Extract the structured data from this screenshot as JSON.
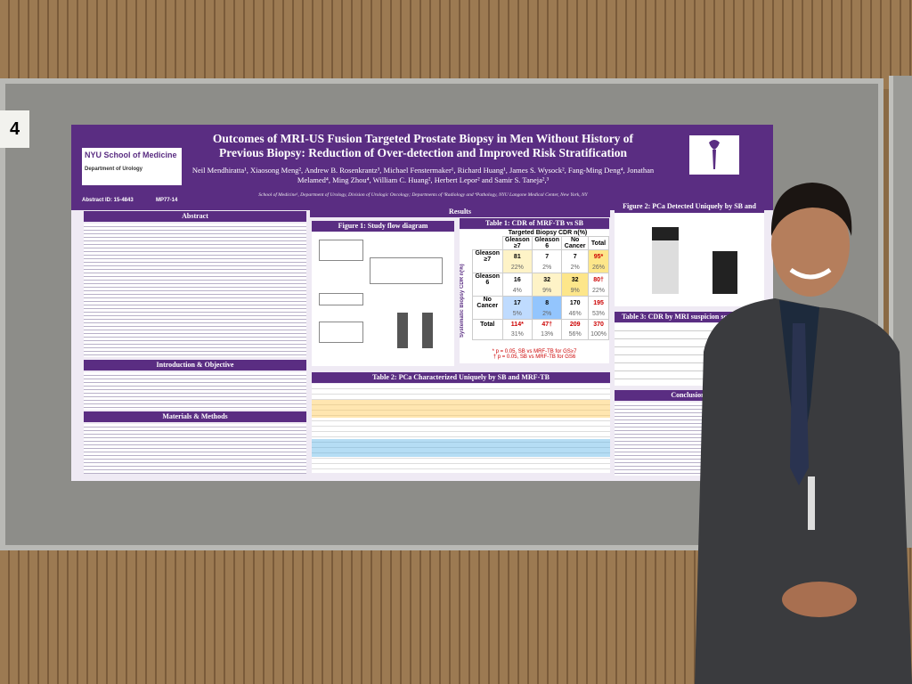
{
  "board_number": "4",
  "poster": {
    "title": "Outcomes of MRI-US Fusion Targeted Prostate Biopsy in Men Without History of Previous Biopsy: Reduction of Over-detection and Improved Risk Stratification",
    "logo": {
      "school": "NYU School of Medicine",
      "department": "Department of Urology"
    },
    "abstract_id": "Abstract ID: 15-4843",
    "poster_id": "MP77-14",
    "authors": "Neil Mendhiratta¹, Xiaosong Meng², Andrew B. Rosenkrantz³, Michael Fenstermaker¹, Richard Huang¹, James S. Wysock², Fang-Ming Deng⁴, Jonathan Melamed⁴, Ming Zhou⁴, William C. Huang², Herbert Lepor² and Samir S. Taneja²,³",
    "affiliations": "School of Medicine¹, Department of Urology, Division of Urologic Oncology; Departments of ³Radiology and ⁴Pathology, NYU Langone Medical Center, New York, NY",
    "sections": {
      "abstract": "Abstract",
      "results": "Results",
      "intro": "Introduction & Objective",
      "methods": "Materials & Methods",
      "conclusions": "Conclusions"
    },
    "figure1": "Figure 1: Study flow diagram",
    "figure2": "Figure 2: PCa Detected Uniquely by SB and MRF-TB",
    "table2": "Table 2: PCa Characterized Uniquely by SB and MRF-TB",
    "table3": "Table 3: CDR by MRI suspicion score (mSS)",
    "table1": {
      "title": "Table 1: CDR of MRF-TB vs SB",
      "col_axis": "Targeted Biopsy CDR n(%)",
      "row_axis": "Systematic Biopsy CDR n(%)",
      "columns": [
        "Gleason ≥7",
        "Gleason 6",
        "No Cancer",
        "Total"
      ],
      "rows": [
        {
          "label": "Gleason ≥7",
          "counts": [
            "81",
            "7",
            "7",
            "95*"
          ],
          "pcts": [
            "22%",
            "2%",
            "2%",
            "26%"
          ]
        },
        {
          "label": "Gleason 6",
          "counts": [
            "16",
            "32",
            "32",
            "80†"
          ],
          "pcts": [
            "4%",
            "9%",
            "9%",
            "22%"
          ]
        },
        {
          "label": "No Cancer",
          "counts": [
            "17",
            "8",
            "170",
            "195"
          ],
          "pcts": [
            "5%",
            "2%",
            "46%",
            "53%"
          ]
        },
        {
          "label": "Total",
          "counts": [
            "114*",
            "47†",
            "209",
            "370"
          ],
          "pcts": [
            "31%",
            "13%",
            "56%",
            "100%"
          ]
        }
      ],
      "notes": [
        "* p = 0.05, SB vs MRF-TB for GS≥7",
        "† p = 0.05, SB vs MRF-TB for GS6"
      ]
    }
  }
}
